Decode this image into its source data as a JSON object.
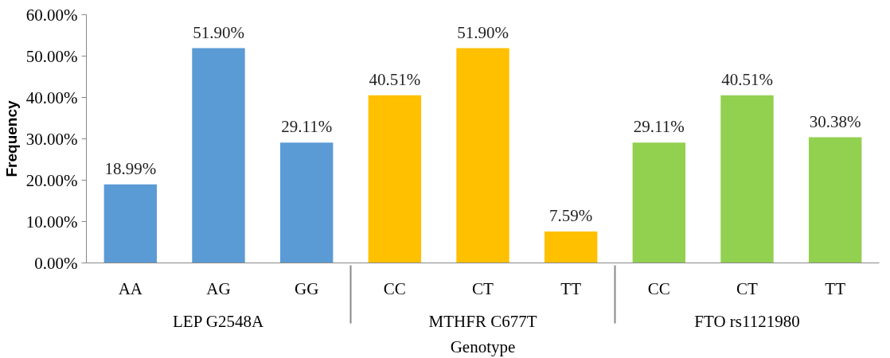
{
  "chart_data": {
    "type": "bar",
    "xlabel": "Genotype",
    "ylabel": "Frequency",
    "categories": [
      "AA",
      "AG",
      "GG",
      "CC",
      "CT",
      "TT",
      "CC",
      "CT",
      "TT"
    ],
    "annotations": [
      "LEP G2548A",
      "MTHFR C677T",
      "FTO rs1121980"
    ],
    "values": [
      18.99,
      51.9,
      29.11,
      40.51,
      51.9,
      7.59,
      29.11,
      40.51,
      30.38
    ],
    "value_labels": [
      "18.99%",
      "51.90%",
      "29.11%",
      "40.51%",
      "51.90%",
      "7.59%",
      "29.11%",
      "40.51%",
      "30.38%"
    ],
    "colors": [
      "#5b9bd5",
      "#5b9bd5",
      "#5b9bd5",
      "#ffc000",
      "#ffc000",
      "#ffc000",
      "#92d050",
      "#92d050",
      "#92d050"
    ],
    "ylim": [
      0,
      60
    ],
    "yticks": [
      {
        "value": 0,
        "label": "0.00%"
      },
      {
        "value": 10,
        "label": "10.00%"
      },
      {
        "value": 20,
        "label": "20.00%"
      },
      {
        "value": 30,
        "label": "30.00%"
      },
      {
        "value": 40,
        "label": "40.00%"
      },
      {
        "value": 50,
        "label": "50.00%"
      },
      {
        "value": 60,
        "label": "60.00%"
      }
    ],
    "grid": false
  }
}
